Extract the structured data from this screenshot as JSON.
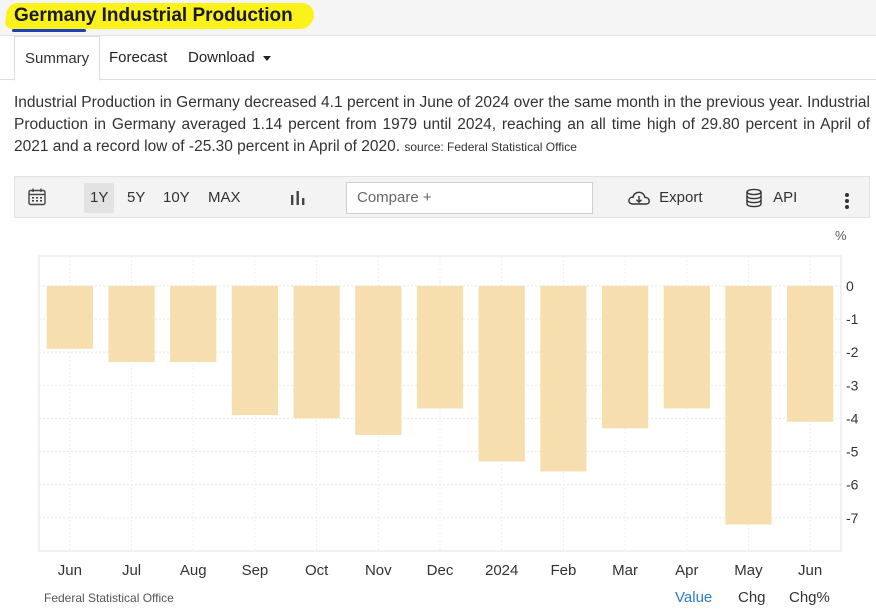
{
  "page": {
    "title": "Germany Industrial Production"
  },
  "tabs": [
    {
      "label": "Summary"
    },
    {
      "label": "Forecast"
    },
    {
      "label": "Download"
    }
  ],
  "description": {
    "text": "Industrial Production in Germany decreased 4.1 percent in June of 2024 over the same month in the previous year. Industrial Production in Germany averaged 1.14 percent from 1979 until 2024, reaching an all time high of 29.80 percent in April of 2021 and a record low of -25.30 percent in April of 2020.",
    "source": "source: Federal Statistical Office"
  },
  "toolbar": {
    "ranges": [
      "1Y",
      "5Y",
      "10Y",
      "MAX"
    ],
    "active_range": "1Y",
    "compare_placeholder": "Compare +",
    "export_label": "Export",
    "api_label": "API"
  },
  "chart_data": {
    "type": "bar",
    "categories": [
      "Jun",
      "Jul",
      "Aug",
      "Sep",
      "Oct",
      "Nov",
      "Dec",
      "2024",
      "Feb",
      "Mar",
      "Apr",
      "May",
      "Jun"
    ],
    "values": [
      -1.9,
      -2.3,
      -2.3,
      -3.9,
      -4.0,
      -4.5,
      -3.7,
      -5.3,
      -5.6,
      -4.3,
      -3.7,
      -7.2,
      -4.1
    ],
    "ylim": [
      -8,
      0.9
    ],
    "yticks": [
      0,
      -1,
      -2,
      -3,
      -4,
      -5,
      -6,
      -7
    ],
    "unit": "%",
    "bar_color": "#f7deaf",
    "grid": true
  },
  "footer": {
    "source": "Federal Statistical Office",
    "value_label": "Value",
    "chg_label": "Chg",
    "chgpct_label": "Chg%",
    "link_color": "#2a7bd0"
  }
}
